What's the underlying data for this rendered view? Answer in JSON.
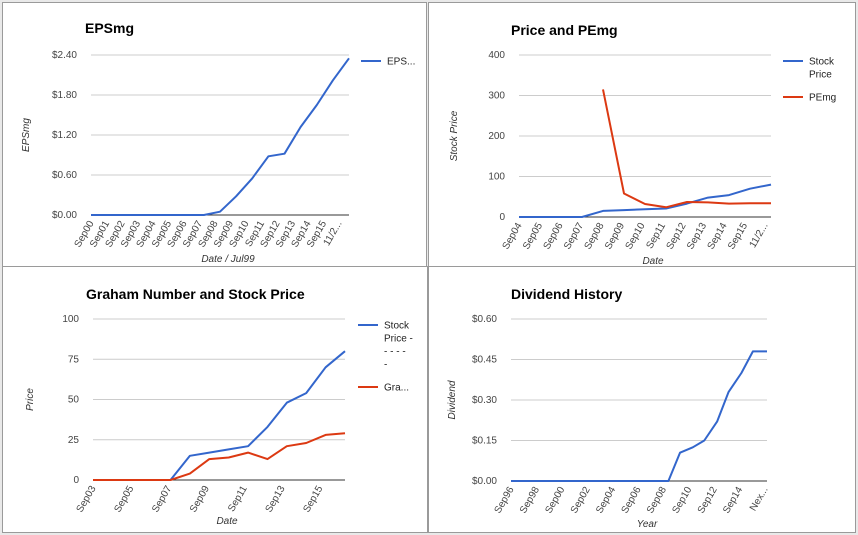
{
  "chart_data": [
    {
      "type": "line",
      "title": "EPSmg",
      "xlabel": "Date / Jul99",
      "ylabel": "EPSmg",
      "ylim": [
        0,
        2.4
      ],
      "yticks": [
        0,
        0.6,
        1.2,
        1.8,
        2.4
      ],
      "ytick_labels": [
        "$0.00",
        "$0.60",
        "$1.20",
        "$1.80",
        "$2.40"
      ],
      "categories": [
        "Sep00",
        "Sep01",
        "Sep02",
        "Sep03",
        "Sep04",
        "Sep05",
        "Sep06",
        "Sep07",
        "Sep08",
        "Sep09",
        "Sep10",
        "Sep11",
        "Sep12",
        "Sep13",
        "Sep14",
        "Sep15",
        "11/2..."
      ],
      "grid": true,
      "legend_position": "right",
      "series": [
        {
          "name": "EPS...",
          "color": "#3366cc",
          "x": [
            0,
            1,
            2,
            3,
            4,
            5,
            6,
            7,
            8,
            9,
            10,
            11,
            12,
            13,
            14,
            15,
            16
          ],
          "values": [
            0,
            0,
            0,
            0,
            0,
            0,
            0,
            0,
            0.05,
            0.28,
            0.55,
            0.88,
            0.92,
            1.32,
            1.65,
            2.02,
            2.35
          ]
        }
      ]
    },
    {
      "type": "line",
      "title": "Price and PEmg",
      "xlabel": "Date",
      "ylabel": "Stock Price",
      "ylim": [
        0,
        400
      ],
      "yticks": [
        0,
        100,
        200,
        300,
        400
      ],
      "ytick_labels": [
        "0",
        "100",
        "200",
        "300",
        "400"
      ],
      "categories": [
        "Sep04",
        "Sep05",
        "Sep06",
        "Sep07",
        "Sep08",
        "Sep09",
        "Sep10",
        "Sep11",
        "Sep12",
        "Sep13",
        "Sep14",
        "Sep15",
        "11/2..."
      ],
      "grid": true,
      "legend_position": "right",
      "series": [
        {
          "name": "Stock Price",
          "color": "#3366cc",
          "x": [
            0,
            1,
            2,
            3,
            4,
            5,
            6,
            7,
            8,
            9,
            10,
            11,
            12
          ],
          "values": [
            0,
            0,
            0,
            0,
            15,
            17,
            19,
            21,
            33,
            48,
            54,
            70,
            80
          ]
        },
        {
          "name": "PEmg",
          "color": "#dc3912",
          "x": [
            4,
            5,
            6,
            7,
            8,
            9,
            10,
            11,
            12
          ],
          "values": [
            315,
            58,
            32,
            24,
            37,
            36,
            33,
            34,
            34
          ]
        }
      ]
    },
    {
      "type": "line",
      "title": "Graham Number and Stock Price",
      "xlabel": "Date",
      "ylabel": "Price",
      "ylim": [
        0,
        100
      ],
      "yticks": [
        0,
        25,
        50,
        75,
        100
      ],
      "ytick_labels": [
        "0",
        "25",
        "50",
        "75",
        "100"
      ],
      "categories": [
        "Sep03",
        "Sep05",
        "Sep07",
        "Sep09",
        "Sep11",
        "Sep13",
        "Sep15"
      ],
      "grid": true,
      "legend_position": "right",
      "series": [
        {
          "name": "Stock Price - - - - - -",
          "color": "#3366cc",
          "x": [
            0,
            1,
            2,
            3,
            4,
            5,
            6,
            7,
            8,
            9,
            10,
            11,
            12,
            13
          ],
          "values": [
            0,
            0,
            0,
            0,
            0,
            15,
            17,
            19,
            21,
            33,
            48,
            54,
            70,
            80
          ]
        },
        {
          "name": "Gra...",
          "color": "#dc3912",
          "x": [
            0,
            1,
            2,
            3,
            4,
            5,
            6,
            7,
            8,
            9,
            10,
            11,
            12,
            13
          ],
          "values": [
            0,
            0,
            0,
            0,
            0,
            4,
            13,
            14,
            17,
            13,
            21,
            23,
            28,
            29
          ]
        }
      ]
    },
    {
      "type": "line",
      "title": "Dividend History",
      "xlabel": "Year",
      "ylabel": "Dividend",
      "ylim": [
        0,
        0.6
      ],
      "yticks": [
        0,
        0.15,
        0.3,
        0.45,
        0.6
      ],
      "ytick_labels": [
        "$0.00",
        "$0.15",
        "$0.30",
        "$0.45",
        "$0.60"
      ],
      "categories": [
        "Sep96",
        "Sep98",
        "Sep00",
        "Sep02",
        "Sep04",
        "Sep06",
        "Sep08",
        "Sep10",
        "Sep12",
        "Sep14",
        "Nex..."
      ],
      "grid": true,
      "legend_position": "none",
      "series": [
        {
          "name": "",
          "color": "#3366cc",
          "x": [
            0,
            6.15,
            6.6,
            7.1,
            7.55,
            8.05,
            8.5,
            9.0,
            9.45,
            10.0
          ],
          "values": [
            0,
            0,
            0.105,
            0.125,
            0.15,
            0.22,
            0.33,
            0.4,
            0.48,
            0.48
          ]
        }
      ]
    }
  ]
}
